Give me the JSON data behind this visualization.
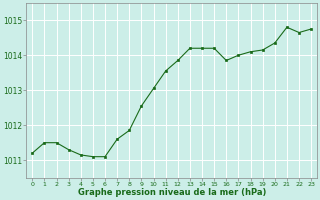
{
  "x": [
    0,
    1,
    2,
    3,
    4,
    5,
    6,
    7,
    8,
    9,
    10,
    11,
    12,
    13,
    14,
    15,
    16,
    17,
    18,
    19,
    20,
    21,
    22,
    23
  ],
  "y": [
    1011.2,
    1011.5,
    1011.5,
    1011.3,
    1011.15,
    1011.1,
    1011.1,
    1011.6,
    1011.85,
    1012.55,
    1013.05,
    1013.55,
    1013.85,
    1014.2,
    1014.2,
    1014.2,
    1013.85,
    1014.0,
    1014.1,
    1014.15,
    1014.35,
    1014.8,
    1014.65,
    1014.75
  ],
  "line_color": "#1a6b1a",
  "marker_color": "#1a6b1a",
  "bg_color": "#cceee8",
  "grid_color": "#ffffff",
  "xlabel": "Graphe pression niveau de la mer (hPa)",
  "yticks": [
    1011,
    1012,
    1013,
    1014,
    1015
  ],
  "ylim": [
    1010.5,
    1015.5
  ],
  "xlim": [
    -0.5,
    23.5
  ]
}
